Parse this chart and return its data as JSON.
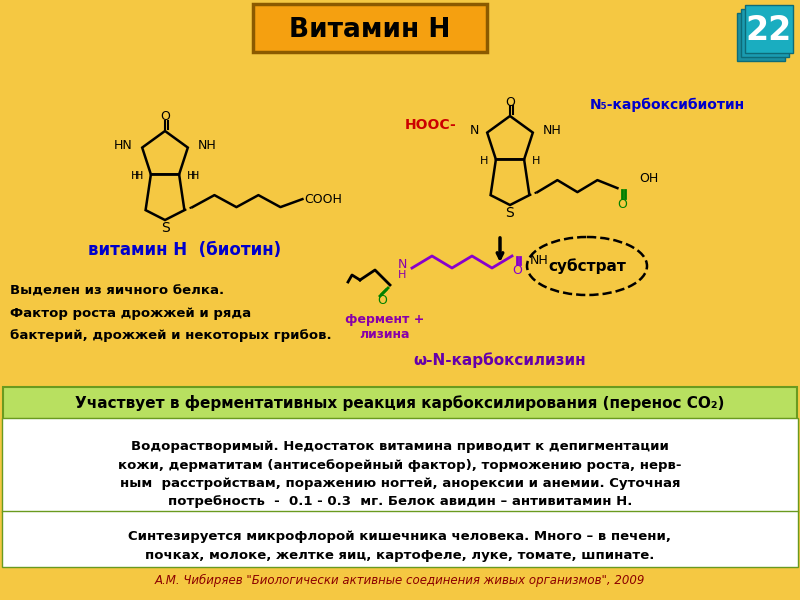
{
  "bg_color": "#F5C842",
  "title": "Витамин Н",
  "title_box_facecolor": "#F5A010",
  "title_box_edgecolor": "#8B5A00",
  "slide_number": "22",
  "vitamin_label": "витамин Н  (биотин)",
  "vitamin_label_color": "#0000CC",
  "left_text": [
    "Выделен из яичного белка.",
    "Фактор роста дрожжей и ряда",
    "бактерий, дрожжей и некоторых грибов."
  ],
  "green_bar_text": "Участвует в ферментативных реакция карбоксилирования (перенос СО₂)",
  "green_bar_color": "#B8E060",
  "green_bar_border": "#6A9A1F",
  "white_box1_text": "Водорастворимый. Недостаток витамина приводит к депигментации\nкожи, дерматитам (антисеборейный фактор), торможению роста, нерв-\nным  расстройствам, поражению ногтей, анорексии и анемии. Суточная\nпотребность  -  0.1 - 0.3  мг. Белок авидин – антивитамин Н.",
  "white_box2_text": "Синтезируется микрофлорой кишечника человека. Много – в печени,\nпочках, молоке, желтке яиц, картофеле, луке, томате, шпинате.",
  "footer_text": "А.М. Чибиряев \"Биологически активные соединения живых организмов\", 2009",
  "footer_color": "#8B0000",
  "right_label1": "N₅-карбоксибиотин",
  "right_label1_color": "#0000CC",
  "right_label2_color": "#9900BB",
  "right_label4": "ω-N-карбоксилизин",
  "right_label4_color": "#6600AA",
  "right_oval_text": "субстрат",
  "hooc_color": "#CC0000"
}
